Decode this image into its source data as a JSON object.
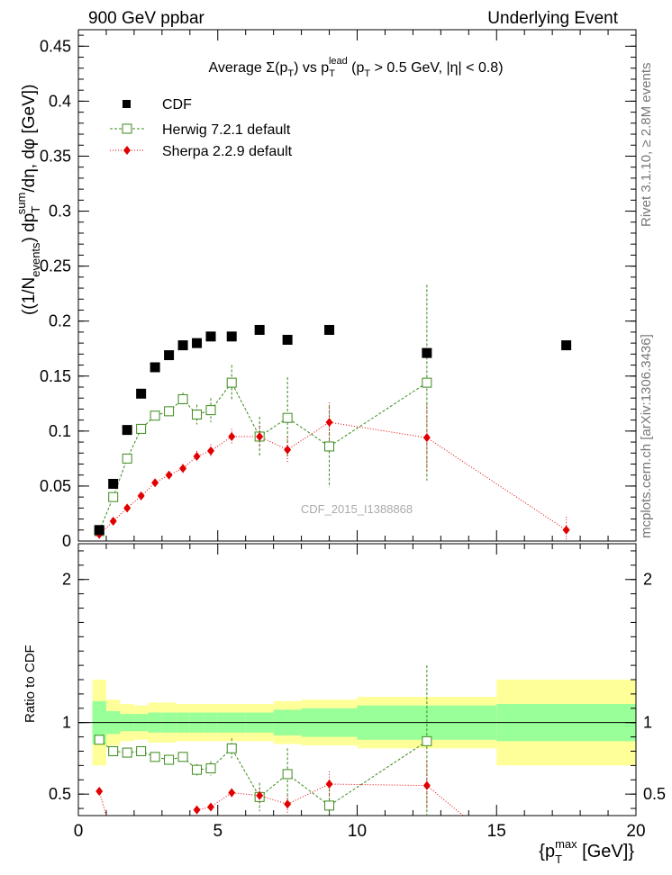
{
  "header": {
    "left": "900 GeV ppbar",
    "right": "Underlying Event",
    "side_top": "Rivet 3.1.10, ≥ 2.8M events",
    "side_bottom": "mcplots.cern.ch [arXiv:1306.3436]",
    "watermark": "CDF_2015_I1388868"
  },
  "chart_data": [
    {
      "type": "scatter",
      "panel": "main",
      "title": "Average Σ(pT) vs pT^lead (pT > 0.5 GeV, |η| < 0.8)",
      "ylabel": "((1/N_events) dpT^sum/dη, dφ [GeV])",
      "xlim": [
        0,
        20
      ],
      "ylim": [
        0,
        0.465
      ],
      "y_ticks": [
        "0",
        "0.05",
        "0.1",
        "0.15",
        "0.2",
        "0.25",
        "0.3",
        "0.35",
        "0.4",
        "0.45"
      ],
      "legend_position": "top-left",
      "series": [
        {
          "name": "CDF",
          "color": "#000000",
          "marker": "filled-square",
          "x": [
            0.75,
            1.25,
            1.75,
            2.25,
            2.75,
            3.25,
            3.75,
            4.25,
            4.75,
            5.5,
            6.5,
            7.5,
            9,
            12.5,
            17.5
          ],
          "y": [
            0.01,
            0.052,
            0.101,
            0.134,
            0.158,
            0.169,
            0.178,
            0.18,
            0.186,
            0.186,
            0.192,
            0.183,
            0.192,
            0.171,
            0.178
          ]
        },
        {
          "name": "Herwig 7.2.1 default",
          "color": "#3a8a1a",
          "marker": "open-square",
          "line": "dashed",
          "x": [
            0.75,
            1.25,
            1.75,
            2.25,
            2.75,
            3.25,
            3.75,
            4.25,
            4.75,
            5.5,
            6.5,
            7.5,
            9,
            12.5
          ],
          "y": [
            0.009,
            0.04,
            0.075,
            0.102,
            0.114,
            0.118,
            0.129,
            0.115,
            0.119,
            0.144,
            0.095,
            0.112,
            0.086,
            0.144
          ],
          "err": [
            0.002,
            0.003,
            0.003,
            0.004,
            0.004,
            0.004,
            0.006,
            0.009,
            0.011,
            0.016,
            0.018,
            0.037,
            0.037,
            0.089
          ]
        },
        {
          "name": "Sherpa 2.2.9 default",
          "color": "#e00000",
          "marker": "diamond",
          "line": "dotted",
          "x": [
            0.75,
            1.25,
            1.75,
            2.25,
            2.75,
            3.25,
            3.75,
            4.25,
            4.75,
            5.5,
            6.5,
            7.5,
            9,
            12.5,
            17.5
          ],
          "y": [
            0.006,
            0.018,
            0.03,
            0.041,
            0.053,
            0.06,
            0.066,
            0.077,
            0.082,
            0.095,
            0.095,
            0.083,
            0.108,
            0.094,
            0.01
          ],
          "err": [
            0.001,
            0.002,
            0.002,
            0.003,
            0.003,
            0.003,
            0.004,
            0.005,
            0.006,
            0.007,
            0.01,
            0.012,
            0.018,
            0.03,
            0.012
          ]
        }
      ]
    },
    {
      "type": "scatter",
      "panel": "ratio",
      "ylabel": "Ratio to CDF",
      "xlabel": "{pT^max [GeV]}",
      "xlim": [
        0,
        20
      ],
      "ylim": [
        0.35,
        2.25
      ],
      "x_ticks": [
        "0",
        "5",
        "10",
        "15",
        "20"
      ],
      "y_ticks": [
        "0.5",
        "1",
        "2"
      ],
      "bands": {
        "edges": [
          0.5,
          1,
          1.5,
          2,
          2.5,
          3,
          3.5,
          4,
          4.5,
          5,
          6,
          7,
          8,
          10,
          15,
          20
        ],
        "stat": [
          0.15,
          0.08,
          0.06,
          0.06,
          0.07,
          0.07,
          0.07,
          0.07,
          0.07,
          0.07,
          0.07,
          0.09,
          0.1,
          0.12,
          0.13
        ],
        "total": [
          0.3,
          0.16,
          0.13,
          0.12,
          0.14,
          0.14,
          0.13,
          0.13,
          0.13,
          0.13,
          0.13,
          0.15,
          0.16,
          0.18,
          0.3
        ],
        "stat_color": "#99ff99",
        "total_color": "#ffff99"
      },
      "series": [
        {
          "name": "Herwig 7.2.1 default",
          "color": "#3a8a1a",
          "x": [
            0.75,
            1.25,
            1.75,
            2.25,
            2.75,
            3.25,
            3.75,
            4.25,
            4.75,
            5.5,
            6.5,
            7.5,
            9,
            12.5
          ],
          "y": [
            0.88,
            0.8,
            0.79,
            0.8,
            0.76,
            0.74,
            0.76,
            0.67,
            0.68,
            0.82,
            0.48,
            0.64,
            0.42,
            0.87
          ],
          "err": [
            0.03,
            0.01,
            0.01,
            0.01,
            0.01,
            0.01,
            0.03,
            0.04,
            0.05,
            0.07,
            0.1,
            0.18,
            0.18,
            0.53
          ]
        },
        {
          "name": "Sherpa 2.2.9 default",
          "color": "#e00000",
          "x": [
            0.75,
            4.25,
            4.75,
            5.5,
            6.5,
            7.5,
            9,
            12.5
          ],
          "y": [
            0.52,
            0.39,
            0.41,
            0.51,
            0.49,
            0.43,
            0.57,
            0.56
          ],
          "err": [
            0.02,
            0.02,
            0.02,
            0.03,
            0.05,
            0.06,
            0.09,
            0.17
          ]
        }
      ]
    }
  ]
}
